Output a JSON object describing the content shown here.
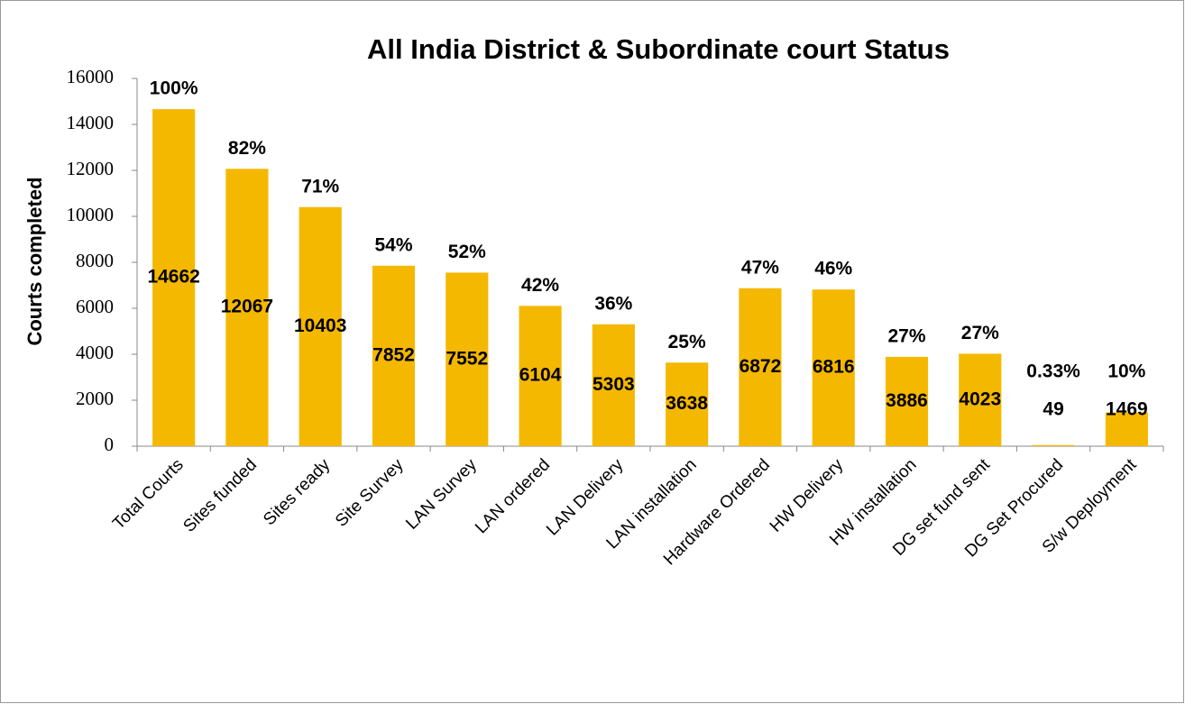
{
  "chart_data": {
    "type": "bar",
    "title": "All India District & Subordinate  court Status",
    "y_label": "Courts completed",
    "categories": [
      "Total Courts",
      "Sites funded",
      "Sites ready",
      "Site Survey",
      "LAN Survey",
      "LAN ordered",
      "LAN Delivery",
      "LAN installation",
      "Hardware Ordered",
      "HW Delivery",
      "HW installation",
      "DG set fund sent",
      "DG Set Procured",
      "S/w Deployment"
    ],
    "values": [
      14662,
      12067,
      10403,
      7852,
      7552,
      6104,
      5303,
      3638,
      6872,
      6816,
      3886,
      4023,
      49,
      1469
    ],
    "percent_labels": [
      "100%",
      "82%",
      "71%",
      "54%",
      "52%",
      "42%",
      "36%",
      "25%",
      "47%",
      "46%",
      "27%",
      "27%",
      "0.33%",
      "10%"
    ],
    "color": "#f5b800",
    "ylim": [
      0,
      16000
    ],
    "yticks": [
      0,
      2000,
      4000,
      6000,
      8000,
      10000,
      12000,
      14000,
      16000
    ],
    "grid": false
  }
}
